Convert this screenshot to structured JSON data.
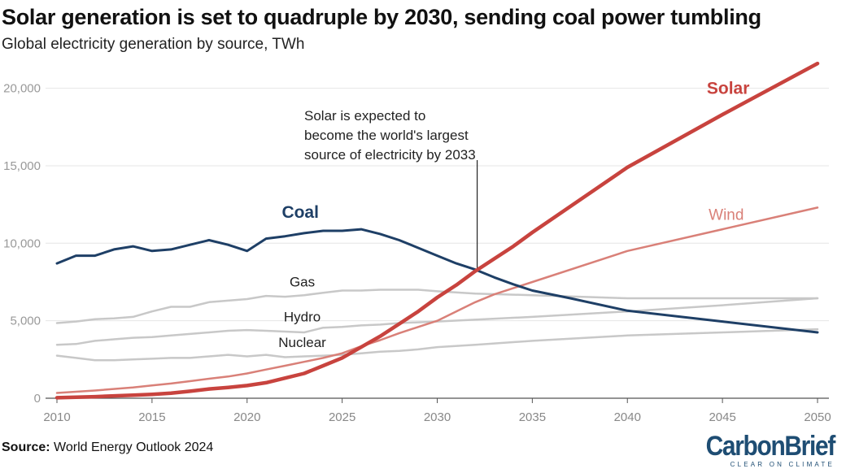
{
  "header": {
    "title": "Solar generation is set to quadruple by 2030, sending coal power tumbling",
    "subtitle": "Global electricity generation by source, TWh"
  },
  "footer": {
    "source_label": "Source:",
    "source_text": "World Energy Outlook 2024",
    "logo_text": "CarbonBrief",
    "logo_tagline": "CLEAR ON CLIMATE"
  },
  "chart_data": {
    "type": "line",
    "title": "Solar generation is set to quadruple by 2030, sending coal power tumbling",
    "subtitle": "Global electricity generation by source, TWh",
    "xlim": [
      2010,
      2050
    ],
    "ylim": [
      0,
      21500
    ],
    "x_ticks": [
      2010,
      2015,
      2020,
      2025,
      2030,
      2035,
      2040,
      2045,
      2050
    ],
    "y_ticks": [
      0,
      5000,
      10000,
      15000,
      20000
    ],
    "y_tick_labels": [
      "0",
      "5,000",
      "10,000",
      "15,000",
      "20,000"
    ],
    "grid": true,
    "annotation": {
      "lines": [
        "Solar is expected to",
        "become the world's largest",
        "source of electricity by 2033"
      ],
      "x": 2032.1
    },
    "series": [
      {
        "name": "Coal",
        "color": "#1e3f66",
        "width": 3,
        "points": [
          [
            2010,
            8700
          ],
          [
            2011,
            9200
          ],
          [
            2012,
            9200
          ],
          [
            2013,
            9600
          ],
          [
            2014,
            9800
          ],
          [
            2015,
            9500
          ],
          [
            2016,
            9600
          ],
          [
            2017,
            9900
          ],
          [
            2018,
            10200
          ],
          [
            2019,
            9900
          ],
          [
            2020,
            9500
          ],
          [
            2021,
            10300
          ],
          [
            2022,
            10450
          ],
          [
            2023,
            10650
          ],
          [
            2024,
            10800
          ],
          [
            2025,
            10800
          ],
          [
            2026,
            10900
          ],
          [
            2027,
            10600
          ],
          [
            2028,
            10200
          ],
          [
            2029,
            9700
          ],
          [
            2030,
            9200
          ],
          [
            2031,
            8700
          ],
          [
            2032,
            8300
          ],
          [
            2033,
            7800
          ],
          [
            2034,
            7350
          ],
          [
            2035,
            6950
          ],
          [
            2037,
            6450
          ],
          [
            2040,
            5650
          ],
          [
            2045,
            4950
          ],
          [
            2050,
            4250
          ]
        ]
      },
      {
        "name": "Solar",
        "color": "#c8433e",
        "width": 4.5,
        "points": [
          [
            2010,
            30
          ],
          [
            2012,
            100
          ],
          [
            2014,
            200
          ],
          [
            2015,
            250
          ],
          [
            2016,
            330
          ],
          [
            2017,
            450
          ],
          [
            2018,
            600
          ],
          [
            2019,
            700
          ],
          [
            2020,
            820
          ],
          [
            2021,
            1000
          ],
          [
            2022,
            1300
          ],
          [
            2023,
            1600
          ],
          [
            2024,
            2100
          ],
          [
            2025,
            2600
          ],
          [
            2026,
            3300
          ],
          [
            2027,
            4000
          ],
          [
            2028,
            4800
          ],
          [
            2029,
            5600
          ],
          [
            2030,
            6500
          ],
          [
            2031,
            7300
          ],
          [
            2032,
            8200
          ],
          [
            2033,
            9000
          ],
          [
            2034,
            9800
          ],
          [
            2035,
            10700
          ],
          [
            2040,
            14900
          ],
          [
            2045,
            18300
          ],
          [
            2050,
            21600
          ]
        ]
      },
      {
        "name": "Wind",
        "color": "#d98078",
        "width": 2.5,
        "points": [
          [
            2010,
            340
          ],
          [
            2012,
            500
          ],
          [
            2014,
            700
          ],
          [
            2015,
            830
          ],
          [
            2016,
            950
          ],
          [
            2017,
            1100
          ],
          [
            2018,
            1260
          ],
          [
            2019,
            1400
          ],
          [
            2020,
            1600
          ],
          [
            2021,
            1850
          ],
          [
            2022,
            2100
          ],
          [
            2023,
            2350
          ],
          [
            2024,
            2600
          ],
          [
            2025,
            2900
          ],
          [
            2026,
            3350
          ],
          [
            2027,
            3750
          ],
          [
            2028,
            4200
          ],
          [
            2029,
            4600
          ],
          [
            2030,
            5000
          ],
          [
            2031,
            5600
          ],
          [
            2032,
            6200
          ],
          [
            2033,
            6700
          ],
          [
            2034,
            7100
          ],
          [
            2035,
            7500
          ],
          [
            2040,
            9500
          ],
          [
            2045,
            10900
          ],
          [
            2050,
            12300
          ]
        ]
      },
      {
        "name": "Gas",
        "color": "#c8c8c8",
        "width": 2.5,
        "points": [
          [
            2010,
            4850
          ],
          [
            2011,
            4950
          ],
          [
            2012,
            5100
          ],
          [
            2013,
            5150
          ],
          [
            2014,
            5250
          ],
          [
            2015,
            5600
          ],
          [
            2016,
            5900
          ],
          [
            2017,
            5900
          ],
          [
            2018,
            6200
          ],
          [
            2019,
            6300
          ],
          [
            2020,
            6400
          ],
          [
            2021,
            6600
          ],
          [
            2022,
            6550
          ],
          [
            2023,
            6650
          ],
          [
            2024,
            6800
          ],
          [
            2025,
            6950
          ],
          [
            2026,
            6950
          ],
          [
            2027,
            7000
          ],
          [
            2028,
            7000
          ],
          [
            2029,
            7000
          ],
          [
            2030,
            6900
          ],
          [
            2032,
            6750
          ],
          [
            2035,
            6650
          ],
          [
            2040,
            6450
          ],
          [
            2045,
            6450
          ],
          [
            2050,
            6450
          ]
        ]
      },
      {
        "name": "Hydro",
        "color": "#c8c8c8",
        "width": 2.5,
        "points": [
          [
            2010,
            3450
          ],
          [
            2011,
            3500
          ],
          [
            2012,
            3700
          ],
          [
            2013,
            3800
          ],
          [
            2014,
            3900
          ],
          [
            2015,
            3950
          ],
          [
            2016,
            4050
          ],
          [
            2017,
            4150
          ],
          [
            2018,
            4250
          ],
          [
            2019,
            4350
          ],
          [
            2020,
            4400
          ],
          [
            2021,
            4350
          ],
          [
            2022,
            4300
          ],
          [
            2023,
            4250
          ],
          [
            2024,
            4550
          ],
          [
            2025,
            4600
          ],
          [
            2026,
            4700
          ],
          [
            2027,
            4750
          ],
          [
            2028,
            4850
          ],
          [
            2029,
            4900
          ],
          [
            2030,
            4950
          ],
          [
            2035,
            5250
          ],
          [
            2040,
            5600
          ],
          [
            2045,
            6000
          ],
          [
            2050,
            6450
          ]
        ]
      },
      {
        "name": "Nuclear",
        "color": "#c8c8c8",
        "width": 2.5,
        "points": [
          [
            2010,
            2750
          ],
          [
            2011,
            2600
          ],
          [
            2012,
            2450
          ],
          [
            2013,
            2450
          ],
          [
            2014,
            2500
          ],
          [
            2015,
            2550
          ],
          [
            2016,
            2600
          ],
          [
            2017,
            2600
          ],
          [
            2018,
            2700
          ],
          [
            2019,
            2800
          ],
          [
            2020,
            2700
          ],
          [
            2021,
            2800
          ],
          [
            2022,
            2650
          ],
          [
            2023,
            2700
          ],
          [
            2024,
            2750
          ],
          [
            2025,
            2800
          ],
          [
            2026,
            2900
          ],
          [
            2027,
            3000
          ],
          [
            2028,
            3050
          ],
          [
            2029,
            3150
          ],
          [
            2030,
            3300
          ],
          [
            2032,
            3450
          ],
          [
            2035,
            3700
          ],
          [
            2040,
            4050
          ],
          [
            2045,
            4250
          ],
          [
            2050,
            4450
          ]
        ]
      }
    ],
    "series_labels": [
      {
        "name": "Solar",
        "color": "#c8433e",
        "size": 21,
        "weight": "bold",
        "x": 2045.3,
        "y": 19650
      },
      {
        "name": "Wind",
        "color": "#d98078",
        "size": 19,
        "weight": "normal",
        "x": 2045.2,
        "y": 11500
      },
      {
        "name": "Coal",
        "color": "#1e3f66",
        "size": 21,
        "weight": "bold",
        "x": 2022.8,
        "y": 11650
      },
      {
        "name": "Gas",
        "color": "#222222",
        "size": 17,
        "weight": "normal",
        "x": 2022.9,
        "y": 7200
      },
      {
        "name": "Hydro",
        "color": "#222222",
        "size": 17,
        "weight": "normal",
        "x": 2022.9,
        "y": 4950
      },
      {
        "name": "Nuclear",
        "color": "#222222",
        "size": 17,
        "weight": "normal",
        "x": 2022.9,
        "y": 3300
      }
    ]
  }
}
